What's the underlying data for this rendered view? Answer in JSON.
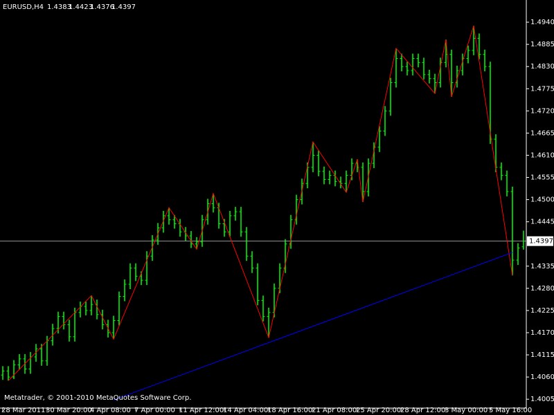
{
  "chart_data": {
    "type": "ohlc",
    "title": "EURUSD,H4",
    "footer": "Metatrader, © 2001-2010 MetaQuotes Software Corp.",
    "color": "#00ff00",
    "background": "#000000",
    "categories": [
      "28 Mar 2011",
      null,
      null,
      null,
      null,
      null,
      null,
      null,
      "30 Mar 20:00",
      null,
      null,
      null,
      null,
      null,
      null,
      null,
      "4 Apr 08:00",
      null,
      null,
      null,
      null,
      null,
      null,
      null,
      "7 Apr 00:00",
      null,
      null,
      null,
      null,
      null,
      null,
      null,
      "11 Apr 12:00",
      null,
      null,
      null,
      null,
      null,
      null,
      null,
      "14 Apr 04:00",
      null,
      null,
      null,
      null,
      null,
      null,
      null,
      "18 Apr 16:00",
      null,
      null,
      null,
      null,
      null,
      null,
      null,
      "21 Apr 08:00",
      null,
      null,
      null,
      null,
      null,
      null,
      null,
      "25 Apr 20:00",
      null,
      null,
      null,
      null,
      null,
      null,
      null,
      "28 Apr 12:00",
      null,
      null,
      null,
      null,
      null,
      null,
      null,
      "3 May 00:00",
      null,
      null,
      null,
      null,
      null,
      null,
      null,
      "5 May 16:00",
      null,
      null,
      null,
      null,
      null,
      null
    ],
    "open": [
      1.4065,
      1.4075,
      1.406,
      1.409,
      1.4105,
      1.408,
      1.411,
      1.413,
      1.41,
      1.415,
      1.418,
      1.421,
      1.419,
      1.416,
      1.422,
      1.4235,
      1.4225,
      1.424,
      1.4215,
      1.419,
      1.417,
      1.42,
      1.426,
      1.429,
      1.433,
      1.431,
      1.43,
      1.436,
      1.44,
      1.443,
      1.446,
      1.445,
      1.444,
      1.442,
      1.441,
      1.439,
      1.4395,
      1.445,
      1.449,
      1.448,
      1.444,
      1.442,
      1.446,
      1.447,
      1.442,
      1.436,
      1.433,
      1.425,
      1.421,
      1.422,
      1.428,
      1.433,
      1.439,
      1.445,
      1.45,
      1.454,
      1.458,
      1.461,
      1.457,
      1.455,
      1.456,
      1.4545,
      1.454,
      1.456,
      1.459,
      1.458,
      1.452,
      1.459,
      1.463,
      1.467,
      1.472,
      1.479,
      1.485,
      1.483,
      1.482,
      1.485,
      1.484,
      1.481,
      1.48,
      1.479,
      1.484,
      1.486,
      1.479,
      1.482,
      1.485,
      1.487,
      1.49,
      1.486,
      1.483,
      1.465,
      1.458,
      1.456,
      1.452,
      1.435,
      1.4383
    ],
    "high": [
      1.4087,
      1.4087,
      1.4102,
      1.4117,
      1.4117,
      1.4122,
      1.4142,
      1.4142,
      1.4162,
      1.4192,
      1.4222,
      1.4222,
      1.4202,
      1.4232,
      1.4247,
      1.4247,
      1.4262,
      1.4252,
      1.4227,
      1.4202,
      1.4212,
      1.4272,
      1.4302,
      1.4342,
      1.4342,
      1.4322,
      1.4372,
      1.4412,
      1.4442,
      1.4472,
      1.448,
      1.4462,
      1.4452,
      1.4432,
      1.4422,
      1.4407,
      1.4462,
      1.4502,
      1.4515,
      1.4492,
      1.4452,
      1.4472,
      1.4482,
      1.4482,
      1.4432,
      1.4372,
      1.4342,
      1.4262,
      1.4232,
      1.4292,
      1.4342,
      1.4402,
      1.4462,
      1.4512,
      1.4552,
      1.4592,
      1.4643,
      1.4622,
      1.4582,
      1.4572,
      1.4572,
      1.4557,
      1.4572,
      1.4602,
      1.46,
      1.4592,
      1.4602,
      1.4642,
      1.4682,
      1.4732,
      1.4802,
      1.4875,
      1.4862,
      1.4842,
      1.4862,
      1.4862,
      1.4852,
      1.4822,
      1.4812,
      1.4852,
      1.4897,
      1.4872,
      1.4832,
      1.4862,
      1.4882,
      1.4931,
      1.4912,
      1.4872,
      1.4842,
      1.4662,
      1.4592,
      1.4572,
      1.4532,
      1.4392,
      1.4423
    ],
    "low": [
      1.4053,
      1.4051,
      1.4055,
      1.4078,
      1.4068,
      1.4068,
      1.4098,
      1.4088,
      1.4088,
      1.4138,
      1.4168,
      1.4178,
      1.4148,
      1.4148,
      1.4208,
      1.4213,
      1.4213,
      1.4203,
      1.4178,
      1.4158,
      1.4154,
      1.4188,
      1.4248,
      1.4278,
      1.4298,
      1.4288,
      1.4288,
      1.4348,
      1.4388,
      1.4418,
      1.4438,
      1.4428,
      1.4408,
      1.4398,
      1.438,
      1.4377,
      1.4383,
      1.4438,
      1.4468,
      1.4428,
      1.4408,
      1.4408,
      1.4448,
      1.4408,
      1.4348,
      1.4318,
      1.4238,
      1.4198,
      1.4158,
      1.4208,
      1.4268,
      1.4318,
      1.4378,
      1.4438,
      1.4488,
      1.4528,
      1.4568,
      1.4558,
      1.4538,
      1.4538,
      1.4533,
      1.4528,
      1.4518,
      1.4548,
      1.4568,
      1.4494,
      1.4508,
      1.4578,
      1.4618,
      1.4658,
      1.4708,
      1.4778,
      1.4818,
      1.4808,
      1.4808,
      1.4828,
      1.4798,
      1.4788,
      1.4763,
      1.4778,
      1.4828,
      1.4755,
      1.4778,
      1.4808,
      1.4838,
      1.4858,
      1.4848,
      1.4818,
      1.4638,
      1.4568,
      1.4548,
      1.4508,
      1.4312,
      1.4338,
      1.4376
    ],
    "close": [
      1.4075,
      1.406,
      1.409,
      1.4105,
      1.408,
      1.411,
      1.413,
      1.41,
      1.415,
      1.418,
      1.421,
      1.419,
      1.416,
      1.422,
      1.4235,
      1.4225,
      1.424,
      1.4215,
      1.419,
      1.417,
      1.42,
      1.426,
      1.429,
      1.433,
      1.431,
      1.43,
      1.436,
      1.44,
      1.443,
      1.446,
      1.445,
      1.444,
      1.442,
      1.441,
      1.439,
      1.4395,
      1.445,
      1.449,
      1.448,
      1.444,
      1.442,
      1.446,
      1.447,
      1.442,
      1.436,
      1.433,
      1.425,
      1.421,
      1.422,
      1.428,
      1.433,
      1.439,
      1.445,
      1.45,
      1.454,
      1.458,
      1.461,
      1.457,
      1.455,
      1.456,
      1.4545,
      1.454,
      1.456,
      1.459,
      1.458,
      1.452,
      1.459,
      1.463,
      1.467,
      1.472,
      1.479,
      1.485,
      1.483,
      1.482,
      1.485,
      1.484,
      1.481,
      1.48,
      1.479,
      1.484,
      1.486,
      1.479,
      1.482,
      1.485,
      1.487,
      1.49,
      1.486,
      1.483,
      1.465,
      1.458,
      1.456,
      1.452,
      1.435,
      1.438,
      1.4397
    ],
    "zigzag": {
      "color": "#ff0000",
      "x": [
        1,
        16,
        20,
        30,
        35,
        38,
        48,
        56,
        62,
        64,
        65,
        71,
        78,
        80,
        81,
        85,
        92
      ],
      "y": [
        1.4051,
        1.4262,
        1.4154,
        1.448,
        1.4377,
        1.4515,
        1.4158,
        1.4643,
        1.4518,
        1.46,
        1.4494,
        1.4875,
        1.4763,
        1.4897,
        1.4755,
        1.4931,
        1.4312
      ]
    },
    "trendline": {
      "color": "#0000ff",
      "x": [
        20,
        92
      ],
      "y": [
        1.4003,
        1.4369
      ]
    },
    "price_line_color": "#c0c0c0",
    "ylim": [
      1.3983,
      1.4995
    ],
    "yticks": [
      {
        "value": 1.4005,
        "label": "1.4005"
      },
      {
        "value": 1.406,
        "label": "1.4060"
      },
      {
        "value": 1.4115,
        "label": "1.4115"
      },
      {
        "value": 1.417,
        "label": "1.4170"
      },
      {
        "value": 1.4225,
        "label": "1.4225"
      },
      {
        "value": 1.428,
        "label": "1.4280"
      },
      {
        "value": 1.4335,
        "label": "1.4335"
      },
      {
        "value": 1.4445,
        "label": "1.4445"
      },
      {
        "value": 1.45,
        "label": "1.4500"
      },
      {
        "value": 1.4555,
        "label": "1.4555"
      },
      {
        "value": 1.461,
        "label": "1.4610"
      },
      {
        "value": 1.4665,
        "label": "1.4665"
      },
      {
        "value": 1.472,
        "label": "1.4720"
      },
      {
        "value": 1.4775,
        "label": "1.4775"
      },
      {
        "value": 1.483,
        "label": "1.4830"
      },
      {
        "value": 1.4885,
        "label": "1.4885"
      },
      {
        "value": 1.494,
        "label": "1.4940"
      }
    ]
  }
}
